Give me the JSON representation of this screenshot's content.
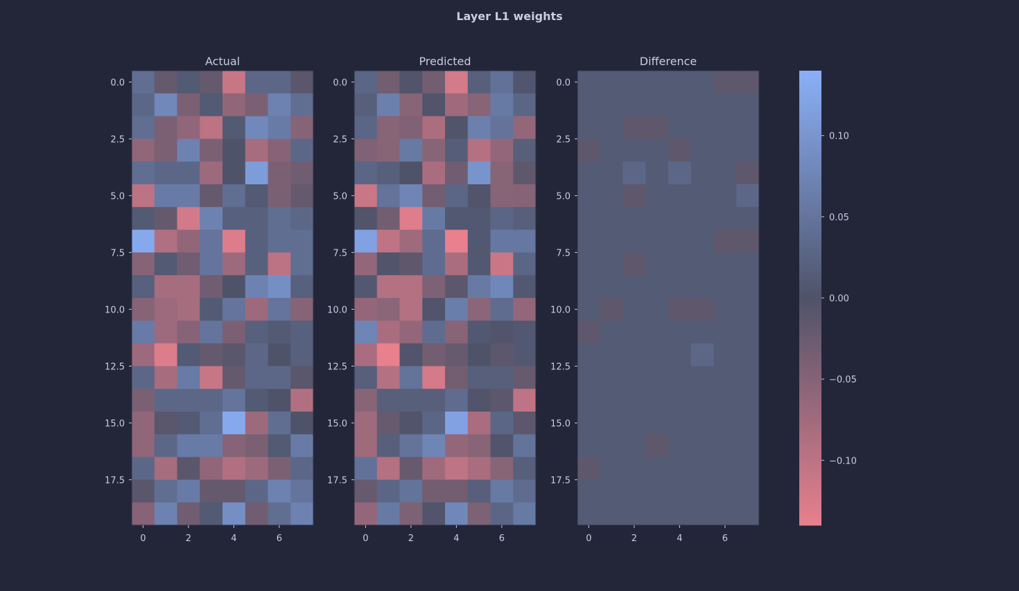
{
  "title": "Layer L1 weights",
  "chart_data": [
    {
      "type": "heatmap",
      "title": "Actual",
      "rows": 20,
      "cols": 8,
      "xticks": [
        "0",
        "2",
        "4",
        "6"
      ],
      "yticks": [
        "0.0",
        "2.5",
        "5.0",
        "7.5",
        "10.0",
        "12.5",
        "15.0",
        "17.5"
      ],
      "values": [
        [
          0.04,
          -0.02,
          0.01,
          -0.02,
          -0.11,
          0.03,
          0.03,
          -0.01
        ],
        [
          0.03,
          0.08,
          -0.04,
          0.01,
          -0.06,
          -0.04,
          0.07,
          0.04
        ],
        [
          0.04,
          -0.04,
          -0.06,
          -0.1,
          0.01,
          0.08,
          0.06,
          -0.05
        ],
        [
          -0.06,
          -0.04,
          0.07,
          -0.04,
          0.0,
          -0.08,
          -0.05,
          0.03
        ],
        [
          0.04,
          0.03,
          0.03,
          -0.07,
          0.0,
          0.11,
          -0.04,
          -0.03
        ],
        [
          -0.1,
          0.06,
          0.06,
          -0.02,
          0.04,
          0.01,
          -0.04,
          -0.02
        ],
        [
          0.01,
          -0.02,
          -0.12,
          0.07,
          0.02,
          0.02,
          0.04,
          0.03
        ],
        [
          0.13,
          -0.09,
          -0.06,
          0.05,
          -0.13,
          0.02,
          0.04,
          0.04
        ],
        [
          -0.05,
          0.01,
          -0.03,
          0.05,
          -0.07,
          0.02,
          -0.1,
          0.04
        ],
        [
          0.02,
          -0.08,
          -0.08,
          -0.03,
          0.0,
          0.07,
          0.09,
          0.02
        ],
        [
          -0.05,
          -0.07,
          -0.08,
          0.01,
          0.05,
          -0.07,
          0.05,
          -0.05
        ],
        [
          0.06,
          -0.07,
          -0.05,
          0.05,
          -0.04,
          0.02,
          0.01,
          0.02
        ],
        [
          -0.07,
          -0.13,
          0.01,
          -0.02,
          -0.01,
          0.03,
          0.0,
          0.02
        ],
        [
          0.03,
          -0.08,
          0.06,
          -0.11,
          -0.02,
          0.03,
          0.03,
          -0.01
        ],
        [
          -0.04,
          0.03,
          0.03,
          0.03,
          0.05,
          0.01,
          0.0,
          -0.09
        ],
        [
          -0.06,
          -0.01,
          0.01,
          0.04,
          0.13,
          -0.07,
          0.04,
          0.0
        ],
        [
          -0.06,
          0.03,
          0.06,
          0.06,
          -0.05,
          -0.04,
          0.01,
          0.06
        ],
        [
          0.03,
          -0.08,
          -0.01,
          -0.06,
          -0.09,
          -0.07,
          -0.04,
          0.03
        ],
        [
          -0.01,
          0.04,
          0.06,
          -0.02,
          -0.02,
          0.03,
          0.07,
          0.05
        ],
        [
          -0.05,
          0.07,
          -0.03,
          0.01,
          0.09,
          -0.03,
          0.04,
          0.07
        ]
      ]
    },
    {
      "type": "heatmap",
      "title": "Predicted",
      "rows": 20,
      "cols": 8,
      "xticks": [
        "0",
        "2",
        "4",
        "6"
      ],
      "yticks": [
        "0.0",
        "2.5",
        "5.0",
        "7.5",
        "10.0",
        "12.5",
        "15.0",
        "17.5"
      ],
      "values": [
        [
          0.028,
          -0.032,
          -0.002,
          -0.032,
          -0.122,
          0.018,
          0.045,
          0.005
        ],
        [
          0.018,
          0.068,
          -0.052,
          -0.002,
          -0.072,
          -0.052,
          0.058,
          0.028
        ],
        [
          0.028,
          -0.052,
          -0.045,
          -0.085,
          -0.002,
          0.068,
          0.048,
          -0.062
        ],
        [
          -0.045,
          -0.052,
          0.058,
          -0.052,
          0.015,
          -0.092,
          -0.062,
          0.018
        ],
        [
          0.028,
          0.018,
          0.0,
          -0.082,
          -0.03,
          0.098,
          -0.052,
          -0.015
        ],
        [
          -0.112,
          0.048,
          0.075,
          -0.032,
          0.028,
          -0.002,
          -0.052,
          -0.05
        ],
        [
          -0.002,
          -0.032,
          -0.132,
          0.058,
          0.008,
          0.008,
          0.028,
          0.018
        ],
        [
          0.118,
          -0.102,
          -0.072,
          0.038,
          -0.142,
          0.008,
          0.055,
          0.055
        ],
        [
          -0.062,
          -0.002,
          -0.015,
          0.038,
          -0.082,
          0.008,
          -0.112,
          0.028
        ],
        [
          0.008,
          -0.092,
          -0.092,
          -0.042,
          -0.012,
          0.058,
          0.078,
          0.008
        ],
        [
          -0.062,
          -0.055,
          -0.092,
          -0.002,
          0.065,
          -0.055,
          0.038,
          -0.062
        ],
        [
          0.075,
          -0.082,
          -0.062,
          0.038,
          -0.052,
          0.008,
          -0.002,
          0.008
        ],
        [
          -0.082,
          -0.142,
          -0.002,
          -0.032,
          -0.022,
          0.0,
          -0.012,
          0.008
        ],
        [
          0.018,
          -0.092,
          0.048,
          -0.122,
          -0.032,
          0.018,
          0.018,
          -0.022
        ],
        [
          -0.052,
          0.018,
          0.018,
          0.018,
          0.038,
          -0.002,
          -0.012,
          -0.102
        ],
        [
          -0.072,
          -0.022,
          -0.002,
          0.028,
          0.118,
          -0.082,
          0.028,
          -0.012
        ],
        [
          -0.072,
          0.018,
          0.048,
          0.075,
          -0.062,
          -0.052,
          -0.002,
          0.048
        ],
        [
          0.045,
          -0.092,
          -0.022,
          -0.072,
          -0.102,
          -0.082,
          -0.052,
          0.018
        ],
        [
          -0.022,
          0.028,
          0.048,
          -0.032,
          -0.032,
          0.018,
          0.058,
          0.038
        ],
        [
          -0.062,
          0.058,
          -0.042,
          -0.002,
          0.078,
          -0.042,
          0.028,
          0.058
        ]
      ]
    },
    {
      "type": "heatmap",
      "title": "Difference",
      "rows": 20,
      "cols": 8,
      "xticks": [
        "0",
        "2",
        "4",
        "6"
      ],
      "yticks": [
        "0.0",
        "2.5",
        "5.0",
        "7.5",
        "10.0",
        "12.5",
        "15.0",
        "17.5"
      ],
      "values": [
        [
          0.012,
          0.012,
          0.012,
          0.012,
          0.012,
          0.012,
          -0.015,
          -0.015
        ],
        [
          0.012,
          0.012,
          0.012,
          0.012,
          0.012,
          0.012,
          0.012,
          0.012
        ],
        [
          0.012,
          0.012,
          -0.015,
          -0.015,
          0.012,
          0.012,
          0.012,
          0.012
        ],
        [
          -0.015,
          0.012,
          0.012,
          0.012,
          -0.015,
          0.012,
          0.012,
          0.012
        ],
        [
          0.012,
          0.012,
          0.03,
          0.012,
          0.03,
          0.012,
          0.012,
          -0.015
        ],
        [
          0.012,
          0.012,
          -0.015,
          0.012,
          0.012,
          0.012,
          0.012,
          0.03
        ],
        [
          0.012,
          0.012,
          0.012,
          0.012,
          0.012,
          0.012,
          0.012,
          0.012
        ],
        [
          0.012,
          0.012,
          0.012,
          0.012,
          0.012,
          0.012,
          -0.015,
          -0.015
        ],
        [
          0.012,
          0.012,
          -0.015,
          0.012,
          0.012,
          0.012,
          0.012,
          0.012
        ],
        [
          0.012,
          0.012,
          0.012,
          0.012,
          0.012,
          0.012,
          0.012,
          0.012
        ],
        [
          0.012,
          -0.015,
          0.012,
          0.012,
          -0.015,
          -0.015,
          0.012,
          0.012
        ],
        [
          -0.015,
          0.012,
          0.012,
          0.012,
          0.012,
          0.012,
          0.012,
          0.012
        ],
        [
          0.012,
          0.012,
          0.012,
          0.012,
          0.012,
          0.03,
          0.012,
          0.012
        ],
        [
          0.012,
          0.012,
          0.012,
          0.012,
          0.012,
          0.012,
          0.012,
          0.012
        ],
        [
          0.012,
          0.012,
          0.012,
          0.012,
          0.012,
          0.012,
          0.012,
          0.012
        ],
        [
          0.012,
          0.012,
          0.012,
          0.012,
          0.012,
          0.012,
          0.012,
          0.012
        ],
        [
          0.012,
          0.012,
          0.012,
          -0.015,
          0.012,
          0.012,
          0.012,
          0.012
        ],
        [
          -0.015,
          0.012,
          0.012,
          0.012,
          0.012,
          0.012,
          0.012,
          0.012
        ],
        [
          0.012,
          0.012,
          0.012,
          0.012,
          0.012,
          0.012,
          0.012,
          0.012
        ],
        [
          0.012,
          0.012,
          0.012,
          0.012,
          0.012,
          0.012,
          0.012,
          0.012
        ]
      ]
    }
  ],
  "colorbar": {
    "vmin": -0.14,
    "vmax": 0.14,
    "ticks": [
      0.1,
      0.05,
      0.0,
      -0.05,
      -0.1
    ],
    "tick_labels": [
      "0.10",
      "0.05",
      "0.00",
      "−0.05",
      "−0.10"
    ],
    "colors": {
      "low": "#e8808e",
      "mid": "#4f5369",
      "high": "#8ab0f8"
    }
  }
}
